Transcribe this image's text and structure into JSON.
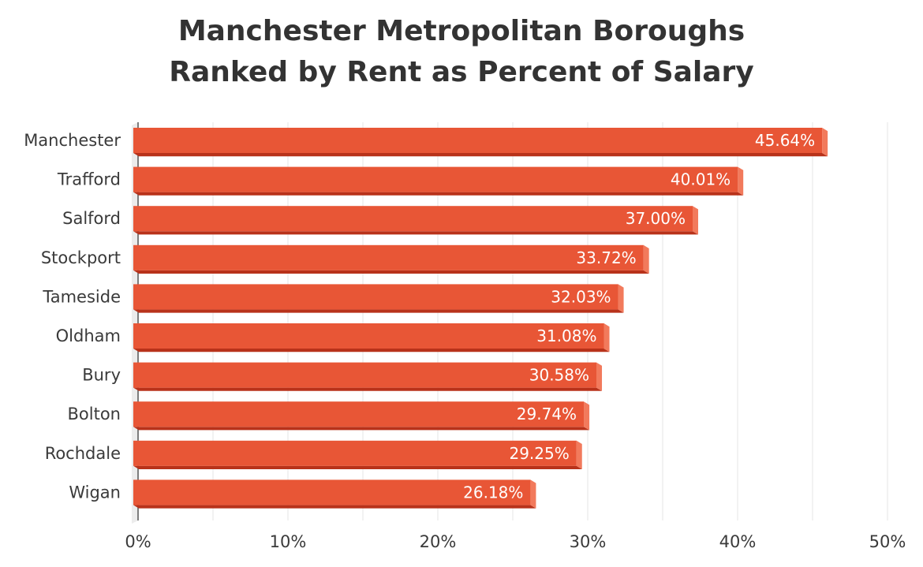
{
  "chart_data": {
    "type": "bar",
    "orientation": "horizontal",
    "title_lines": [
      "Manchester Metropolitan Boroughs",
      "Ranked by Rent as Percent of Salary"
    ],
    "categories": [
      "Manchester",
      "Trafford",
      "Salford",
      "Stockport",
      "Tameside",
      "Oldham",
      "Bury",
      "Bolton",
      "Rochdale",
      "Wigan"
    ],
    "values": [
      45.64,
      40.01,
      37.0,
      33.72,
      32.03,
      31.08,
      30.58,
      29.74,
      29.25,
      26.18
    ],
    "value_labels": [
      "45.64%",
      "40.01%",
      "37.00%",
      "33.72%",
      "32.03%",
      "31.08%",
      "30.58%",
      "29.74%",
      "29.25%",
      "26.18%"
    ],
    "xlim": [
      0,
      50
    ],
    "x_ticks": [
      0,
      10,
      20,
      30,
      40,
      50
    ],
    "x_tick_labels": [
      "0%",
      "10%",
      "20%",
      "30%",
      "40%",
      "50%"
    ],
    "xlabel": "",
    "ylabel": "",
    "grid": true,
    "legend": "none",
    "colors": {
      "bar_face": "#e85636",
      "bar_bottom": "#b8321a",
      "bar_end": "#f27a5c",
      "grid": "#e6e6e6",
      "axis": "#555555"
    }
  }
}
